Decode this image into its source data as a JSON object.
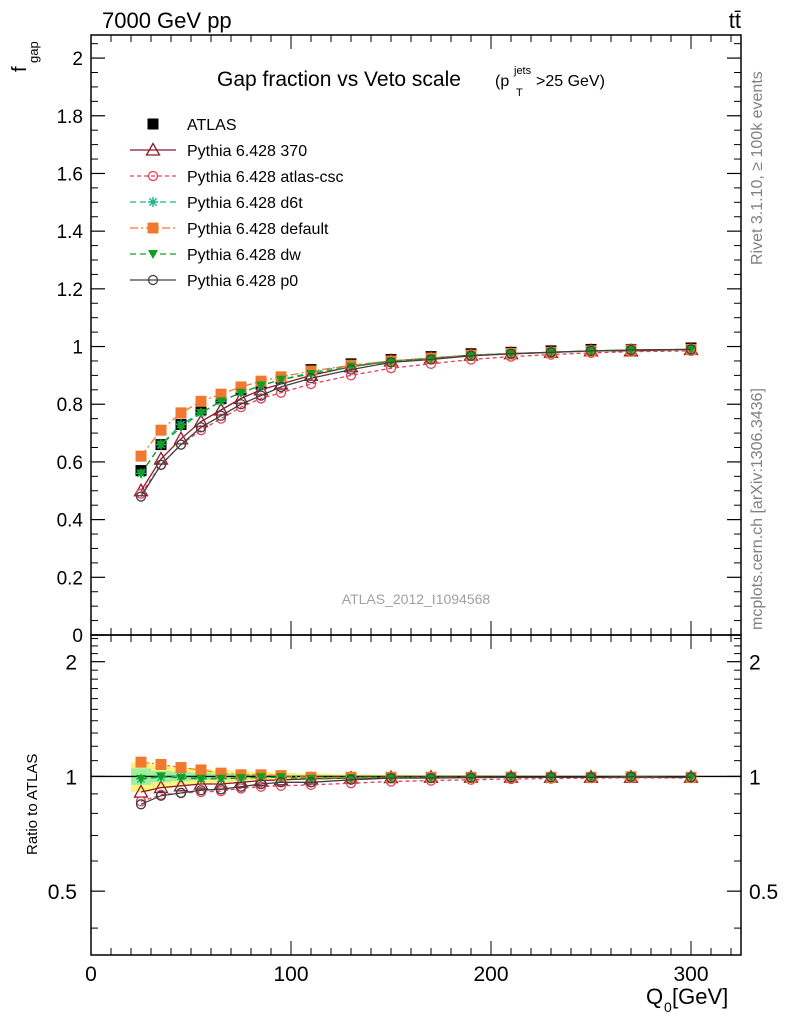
{
  "header": {
    "left": "7000 GeV pp",
    "right": "tt̄",
    "side_top": "Rivet 3.1.10, ≥ 100k events",
    "side_bottom": "mcplots.cern.ch [arXiv:1306.3436]"
  },
  "chart_data": [
    {
      "id": "main",
      "type": "line",
      "title": "Gap fraction vs Veto scale",
      "title_suffix": {
        "base": "(p",
        "sup": "jets",
        "sub": "T",
        "tail": ">25 GeV)"
      },
      "ylabel": {
        "base": "f",
        "sub": "gap"
      },
      "watermark": "ATLAS_2012_I1094568",
      "xlim": [
        0,
        325
      ],
      "ylim": [
        0,
        2.08
      ],
      "yticks": [
        0,
        0.2,
        0.4,
        0.6,
        0.8,
        1,
        1.2,
        1.4,
        1.6,
        1.8,
        2
      ],
      "ytick_labels": [
        "0",
        "0.2",
        "0.4",
        "0.6",
        "0.8",
        "1",
        "1.2",
        "1.4",
        "1.6",
        "1.8",
        "2"
      ],
      "x": [
        25,
        35,
        45,
        55,
        65,
        75,
        85,
        95,
        110,
        130,
        150,
        170,
        190,
        210,
        230,
        250,
        270,
        300
      ],
      "legend_position": "top-left",
      "series": [
        {
          "name": "ATLAS",
          "color": "#000000",
          "marker": "square-filled",
          "line": "none",
          "values": [
            0.57,
            0.66,
            0.73,
            0.78,
            0.82,
            0.85,
            0.87,
            0.89,
            0.92,
            0.94,
            0.955,
            0.965,
            0.975,
            0.98,
            0.985,
            0.99,
            0.99,
            0.995
          ]
        },
        {
          "name": "Pythia 6.428 370",
          "color": "#8b1a2b",
          "marker": "triangle-open",
          "line": "solid",
          "values": [
            0.5,
            0.61,
            0.68,
            0.74,
            0.78,
            0.82,
            0.85,
            0.87,
            0.9,
            0.93,
            0.95,
            0.96,
            0.97,
            0.975,
            0.98,
            0.985,
            0.985,
            0.99
          ]
        },
        {
          "name": "Pythia 6.428 atlas-csc",
          "color": "#e8405a",
          "marker": "circle-open",
          "line": "dotted",
          "values": [
            0.49,
            0.59,
            0.66,
            0.71,
            0.75,
            0.79,
            0.82,
            0.84,
            0.87,
            0.9,
            0.925,
            0.94,
            0.955,
            0.965,
            0.972,
            0.978,
            0.982,
            0.985
          ]
        },
        {
          "name": "Pythia 6.428 d6t",
          "color": "#1bb58e",
          "marker": "star",
          "line": "dashed",
          "values": [
            0.56,
            0.66,
            0.73,
            0.77,
            0.81,
            0.84,
            0.865,
            0.885,
            0.91,
            0.935,
            0.95,
            0.96,
            0.97,
            0.976,
            0.98,
            0.985,
            0.988,
            0.99
          ]
        },
        {
          "name": "Pythia 6.428 default",
          "color": "#f07830",
          "marker": "square-filled",
          "line": "dashdot",
          "values": [
            0.62,
            0.71,
            0.77,
            0.81,
            0.835,
            0.86,
            0.88,
            0.895,
            0.915,
            0.935,
            0.95,
            0.96,
            0.97,
            0.976,
            0.98,
            0.985,
            0.988,
            0.99
          ]
        },
        {
          "name": "Pythia 6.428 dw",
          "color": "#10a020",
          "marker": "triangle-down-filled",
          "line": "dashed",
          "values": [
            0.56,
            0.66,
            0.72,
            0.77,
            0.81,
            0.84,
            0.865,
            0.885,
            0.905,
            0.93,
            0.948,
            0.958,
            0.968,
            0.975,
            0.98,
            0.984,
            0.987,
            0.99
          ]
        },
        {
          "name": "Pythia 6.428 p0",
          "color": "#404040",
          "marker": "circle-open",
          "line": "solid",
          "values": [
            0.48,
            0.59,
            0.66,
            0.72,
            0.76,
            0.8,
            0.83,
            0.86,
            0.89,
            0.92,
            0.945,
            0.955,
            0.968,
            0.975,
            0.98,
            0.985,
            0.988,
            0.99
          ]
        }
      ]
    },
    {
      "id": "ratio",
      "type": "line",
      "ylabel": "Ratio to ATLAS",
      "xlabel": {
        "base": "Q",
        "sub": "0",
        "tail": " [GeV]"
      },
      "xlim": [
        0,
        325
      ],
      "ylim": [
        0.34,
        2.35
      ],
      "yscale": "log",
      "xticks": [
        0,
        100,
        200,
        300
      ],
      "xtick_labels": [
        "0",
        "100",
        "200",
        "300"
      ],
      "yticks": [
        0.5,
        1,
        2
      ],
      "ytick_labels": [
        "0.5",
        "1",
        "2"
      ],
      "x": [
        25,
        35,
        45,
        55,
        65,
        75,
        85,
        95,
        110,
        130,
        150,
        170,
        190,
        210,
        230,
        250,
        270,
        300
      ],
      "band": {
        "stat_color": "#9fef9f",
        "total_color": "#fff27a",
        "stat_half": [
          0.05,
          0.035,
          0.028,
          0.022,
          0.018,
          0.015,
          0.012,
          0.01,
          0.008,
          0.006,
          0.005,
          0.004,
          0.004,
          0.003,
          0.003,
          0.003,
          0.003,
          0.003
        ],
        "total_half": [
          0.09,
          0.07,
          0.055,
          0.045,
          0.038,
          0.032,
          0.027,
          0.023,
          0.018,
          0.013,
          0.01,
          0.008,
          0.007,
          0.006,
          0.005,
          0.005,
          0.004,
          0.004
        ]
      },
      "series": [
        {
          "name": "Pythia 6.428 370",
          "values": [
            0.91,
            0.935,
            0.945,
            0.955,
            0.955,
            0.965,
            0.975,
            0.98,
            0.985,
            0.99,
            0.993,
            0.995,
            0.995,
            0.995,
            0.995,
            0.995,
            0.995,
            0.995
          ]
        },
        {
          "name": "Pythia 6.428 atlas-csc",
          "values": [
            0.86,
            0.895,
            0.905,
            0.91,
            0.915,
            0.93,
            0.94,
            0.945,
            0.95,
            0.96,
            0.97,
            0.975,
            0.98,
            0.985,
            0.987,
            0.99,
            0.992,
            0.99
          ]
        },
        {
          "name": "Pythia 6.428 d6t",
          "values": [
            0.985,
            0.995,
            1.0,
            0.99,
            0.99,
            0.99,
            0.995,
            0.995,
            0.99,
            0.995,
            0.995,
            0.995,
            0.995,
            0.996,
            0.995,
            0.995,
            0.998,
            0.995
          ]
        },
        {
          "name": "Pythia 6.428 default",
          "values": [
            1.09,
            1.075,
            1.055,
            1.04,
            1.02,
            1.01,
            1.01,
            1.005,
            0.995,
            0.995,
            0.995,
            0.995,
            0.995,
            0.996,
            0.995,
            0.995,
            0.998,
            0.995
          ]
        },
        {
          "name": "Pythia 6.428 dw",
          "values": [
            0.985,
            1.0,
            0.99,
            0.985,
            0.985,
            0.99,
            0.995,
            0.995,
            0.985,
            0.99,
            0.993,
            0.993,
            0.993,
            0.995,
            0.995,
            0.994,
            0.997,
            0.995
          ]
        },
        {
          "name": "Pythia 6.428 p0",
          "values": [
            0.845,
            0.89,
            0.905,
            0.92,
            0.925,
            0.94,
            0.955,
            0.965,
            0.965,
            0.98,
            0.99,
            0.99,
            0.993,
            0.995,
            0.995,
            0.995,
            0.998,
            0.995
          ]
        }
      ]
    }
  ]
}
